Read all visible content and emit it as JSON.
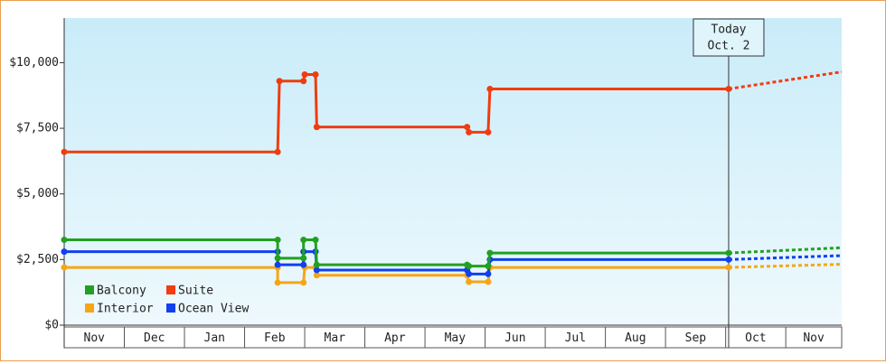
{
  "chart_data": {
    "type": "step-line",
    "months": [
      "Nov",
      "Dec",
      "Jan",
      "Feb",
      "Mar",
      "Apr",
      "May",
      "Jun",
      "Jul",
      "Aug",
      "Sep",
      "Oct",
      "Nov"
    ],
    "xlim": [
      0,
      12.93
    ],
    "ylim": [
      0,
      11700
    ],
    "yticks": [
      {
        "value": 0,
        "label": "$0"
      },
      {
        "value": 2500,
        "label": "$2,500"
      },
      {
        "value": 5000,
        "label": "$5,000"
      },
      {
        "value": 7500,
        "label": "$7,500"
      },
      {
        "value": 10000,
        "label": "$10,000"
      }
    ],
    "legend_position": "lower-left",
    "annotation": {
      "x": 11.05,
      "lines": [
        "Today",
        "Oct. 2"
      ]
    },
    "series": [
      {
        "name": "Balcony",
        "color": "#22a022",
        "x": [
          0,
          3.55,
          3.55,
          3.98,
          3.98,
          4.18,
          4.2,
          6.7,
          6.73,
          7.05,
          7.08,
          11.05
        ],
        "values": [
          3250,
          3250,
          2550,
          2550,
          3250,
          3250,
          2300,
          2300,
          2250,
          2250,
          2750,
          2750
        ],
        "projection": {
          "x": [
            11.05,
            12.93
          ],
          "values": [
            2750,
            2950
          ]
        }
      },
      {
        "name": "Suite",
        "color": "#f03c10",
        "x": [
          0,
          3.55,
          3.58,
          3.98,
          4.0,
          4.18,
          4.2,
          6.7,
          6.73,
          7.05,
          7.08,
          11.05
        ],
        "values": [
          6600,
          6600,
          9300,
          9300,
          9550,
          9550,
          7550,
          7550,
          7350,
          7350,
          9000,
          9000
        ],
        "projection": {
          "x": [
            11.05,
            12.93
          ],
          "values": [
            9000,
            9650
          ]
        }
      },
      {
        "name": "Interior",
        "color": "#f5a614",
        "x": [
          0,
          3.55,
          3.55,
          3.98,
          4.0,
          4.18,
          4.2,
          6.7,
          6.73,
          7.05,
          7.08,
          11.05
        ],
        "values": [
          2200,
          2200,
          1620,
          1620,
          2200,
          2200,
          1900,
          1900,
          1650,
          1650,
          2200,
          2200
        ],
        "projection": {
          "x": [
            11.05,
            12.93
          ],
          "values": [
            2200,
            2320
          ]
        }
      },
      {
        "name": "Ocean View",
        "color": "#1040f0",
        "x": [
          0,
          3.55,
          3.55,
          3.98,
          3.98,
          4.18,
          4.2,
          6.7,
          6.73,
          7.05,
          7.08,
          11.05
        ],
        "values": [
          2800,
          2800,
          2300,
          2300,
          2800,
          2800,
          2100,
          2100,
          1950,
          1950,
          2500,
          2500
        ],
        "projection": {
          "x": [
            11.05,
            12.93
          ],
          "values": [
            2500,
            2650
          ]
        }
      }
    ]
  }
}
